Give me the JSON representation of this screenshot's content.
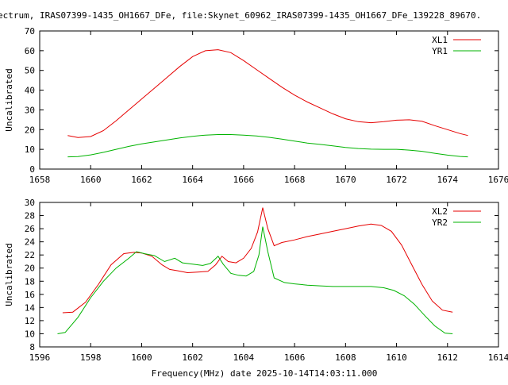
{
  "title": "ectrum, IRAS07399-1435_OH1667_DFe, file:Skynet_60962_IRAS07399-1435_OH1667_DFe_139228_89670.",
  "footer_label": "Frequency(MHz) date 2025-10-14T14:03:11.000",
  "colors": {
    "red": "#e60000",
    "green": "#00b300"
  },
  "chart_data": [
    {
      "type": "line",
      "ylabel": "Uncalibrated",
      "xlim": [
        1658,
        1676
      ],
      "ylim": [
        0,
        70
      ],
      "xticks": [
        1658,
        1660,
        1662,
        1664,
        1666,
        1668,
        1670,
        1672,
        1674,
        1676
      ],
      "yticks": [
        0,
        10,
        20,
        30,
        40,
        50,
        60,
        70
      ],
      "legend_position": "top-right",
      "series": [
        {
          "name": "XL1",
          "color": "red",
          "x": [
            1659.1,
            1659.5,
            1660.0,
            1660.5,
            1661.0,
            1661.5,
            1662.0,
            1662.5,
            1663.0,
            1663.5,
            1664.0,
            1664.5,
            1665.0,
            1665.5,
            1666.0,
            1666.5,
            1667.0,
            1667.5,
            1668.0,
            1668.5,
            1669.0,
            1669.5,
            1670.0,
            1670.5,
            1671.0,
            1671.5,
            1672.0,
            1672.5,
            1673.0,
            1673.5,
            1674.0,
            1674.5,
            1674.8
          ],
          "y": [
            17.0,
            16.0,
            16.5,
            19.5,
            24.5,
            30.0,
            35.5,
            41.0,
            46.5,
            52.0,
            57.0,
            60.0,
            60.5,
            59.0,
            55.0,
            50.5,
            46.0,
            41.5,
            37.5,
            34.0,
            31.0,
            28.0,
            25.5,
            24.0,
            23.5,
            24.0,
            24.8,
            25.0,
            24.2,
            22.0,
            20.0,
            18.0,
            17.0
          ]
        },
        {
          "name": "YR1",
          "color": "green",
          "x": [
            1659.1,
            1659.5,
            1660.0,
            1660.5,
            1661.0,
            1661.5,
            1662.0,
            1662.5,
            1663.0,
            1663.5,
            1664.0,
            1664.5,
            1665.0,
            1665.5,
            1666.0,
            1666.5,
            1667.0,
            1667.5,
            1668.0,
            1668.5,
            1669.0,
            1669.5,
            1670.0,
            1670.5,
            1671.0,
            1671.5,
            1672.0,
            1672.5,
            1673.0,
            1673.5,
            1674.0,
            1674.5,
            1674.8
          ],
          "y": [
            6.2,
            6.3,
            7.2,
            8.5,
            10.0,
            11.5,
            12.8,
            13.8,
            14.8,
            15.8,
            16.6,
            17.2,
            17.5,
            17.5,
            17.2,
            16.8,
            16.1,
            15.2,
            14.2,
            13.2,
            12.5,
            11.8,
            11.0,
            10.4,
            10.1,
            10.0,
            10.0,
            9.6,
            9.0,
            8.0,
            7.1,
            6.4,
            6.2
          ]
        }
      ]
    },
    {
      "type": "line",
      "ylabel": "Uncalibrated",
      "xlim": [
        1596,
        1614
      ],
      "ylim": [
        8,
        30
      ],
      "xticks": [
        1596,
        1598,
        1600,
        1602,
        1604,
        1606,
        1608,
        1610,
        1612,
        1614
      ],
      "yticks": [
        8,
        10,
        12,
        14,
        16,
        18,
        20,
        22,
        24,
        26,
        28,
        30
      ],
      "legend_position": "top-right",
      "series": [
        {
          "name": "XL2",
          "color": "red",
          "x": [
            1596.9,
            1597.3,
            1597.8,
            1598.3,
            1598.8,
            1599.3,
            1599.7,
            1600.0,
            1600.4,
            1600.8,
            1601.1,
            1601.4,
            1601.8,
            1602.2,
            1602.6,
            1602.9,
            1603.15,
            1603.4,
            1603.7,
            1604.0,
            1604.3,
            1604.55,
            1604.75,
            1604.95,
            1605.2,
            1605.5,
            1606.0,
            1606.5,
            1607.0,
            1607.5,
            1608.0,
            1608.5,
            1609.0,
            1609.4,
            1609.8,
            1610.2,
            1610.6,
            1611.0,
            1611.4,
            1611.8,
            1612.2
          ],
          "y": [
            13.2,
            13.3,
            14.8,
            17.5,
            20.5,
            22.2,
            22.4,
            22.3,
            21.8,
            20.5,
            19.8,
            19.6,
            19.3,
            19.4,
            19.5,
            20.5,
            21.8,
            21.0,
            20.8,
            21.5,
            23.0,
            25.5,
            29.2,
            26.0,
            23.4,
            23.9,
            24.3,
            24.8,
            25.2,
            25.6,
            26.0,
            26.4,
            26.7,
            26.5,
            25.6,
            23.5,
            20.5,
            17.5,
            15.0,
            13.6,
            13.3
          ]
        },
        {
          "name": "YR2",
          "color": "green",
          "x": [
            1596.7,
            1597.0,
            1597.5,
            1598.0,
            1598.5,
            1599.0,
            1599.5,
            1599.8,
            1600.1,
            1600.5,
            1600.9,
            1601.3,
            1601.6,
            1602.0,
            1602.4,
            1602.7,
            1603.0,
            1603.2,
            1603.5,
            1603.8,
            1604.1,
            1604.4,
            1604.6,
            1604.75,
            1604.95,
            1605.2,
            1605.6,
            1606.0,
            1606.5,
            1607.0,
            1607.5,
            1608.0,
            1608.5,
            1609.0,
            1609.5,
            1609.9,
            1610.3,
            1610.7,
            1611.1,
            1611.5,
            1611.9,
            1612.2
          ],
          "y": [
            10.0,
            10.2,
            12.5,
            15.5,
            18.0,
            20.0,
            21.5,
            22.5,
            22.2,
            21.9,
            21.0,
            21.5,
            20.8,
            20.6,
            20.4,
            20.7,
            21.8,
            20.6,
            19.2,
            18.9,
            18.8,
            19.5,
            22.0,
            26.3,
            22.5,
            18.5,
            17.8,
            17.6,
            17.4,
            17.3,
            17.2,
            17.2,
            17.2,
            17.2,
            17.0,
            16.6,
            15.8,
            14.5,
            12.8,
            11.2,
            10.1,
            10.0
          ]
        }
      ]
    }
  ]
}
